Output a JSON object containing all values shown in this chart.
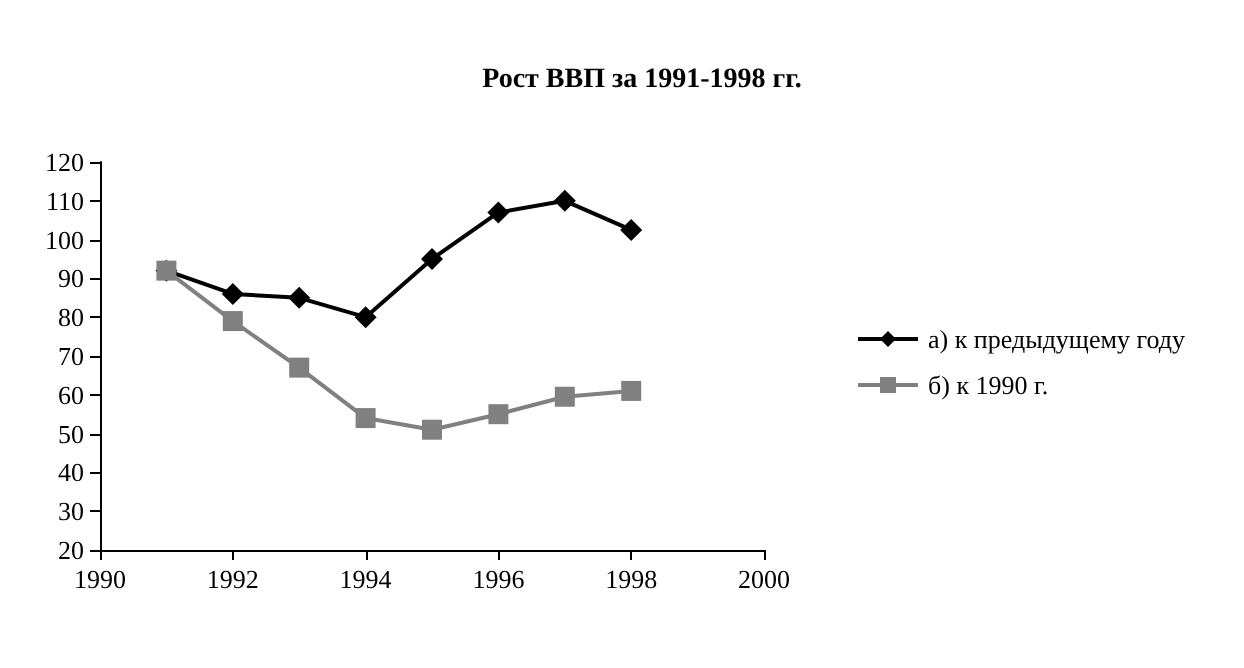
{
  "chart_data": {
    "type": "line",
    "title": "Рост ВВП за 1991-1998 гг.",
    "x": [
      1991,
      1992,
      1993,
      1994,
      1995,
      1996,
      1997,
      1998
    ],
    "series": [
      {
        "name": "а) к предыдущему году",
        "color": "#000000",
        "marker": "diamond",
        "values": [
          92,
          86,
          85,
          80,
          95,
          107,
          110,
          102.5
        ]
      },
      {
        "name": "б) к 1990 г.",
        "color": "#808080",
        "marker": "square",
        "values": [
          92,
          79,
          67,
          54,
          51,
          55,
          59.5,
          61
        ]
      }
    ],
    "xlim": [
      1990,
      2000
    ],
    "xticks": [
      1990,
      1992,
      1994,
      1996,
      1998,
      2000
    ],
    "ylim": [
      20,
      120
    ],
    "yticks": [
      20,
      30,
      40,
      50,
      60,
      70,
      80,
      90,
      100,
      110,
      120
    ],
    "grid": false,
    "legend": "right"
  }
}
